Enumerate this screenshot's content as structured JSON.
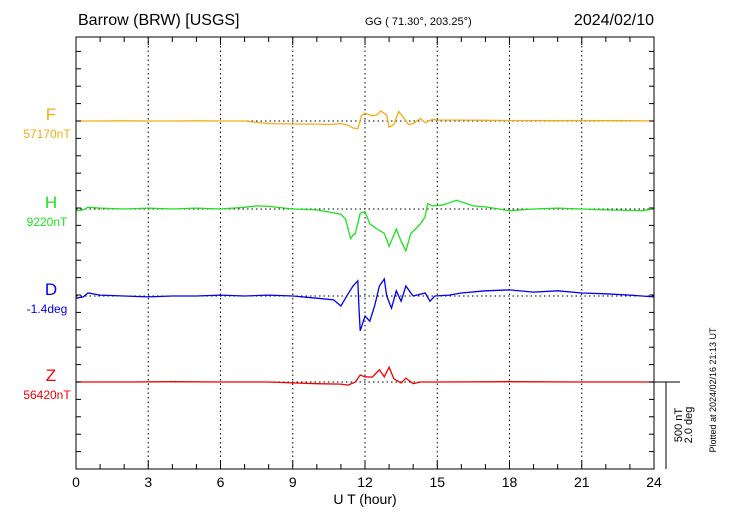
{
  "header": {
    "station": "Barrow (BRW)  [USGS]",
    "coords": "GG ( 71.30°, 203.25°)",
    "date": "2024/02/10"
  },
  "footer": {
    "plotted": "Plotted at 2024/02/16 21:13 UT"
  },
  "chart_data": {
    "type": "line",
    "title": "Barrow (BRW) [USGS] 2024/02/10",
    "xlabel": "U T (hour)",
    "xlim": [
      0,
      24
    ],
    "xticks": [
      "0",
      "3",
      "6",
      "9",
      "12",
      "15",
      "18",
      "21",
      "24"
    ],
    "grid": "vertical dotted every 3 hours; dotted baseline per component",
    "scale": {
      "nT_label": "500 nT",
      "deg_label": "2.0 deg",
      "nT": 500,
      "deg": 2.0
    },
    "series": [
      {
        "name": "F",
        "baseline_label": "57170nT",
        "unit": "nT",
        "color": "#f5ac10",
        "x": [
          0,
          1,
          2,
          3,
          4,
          5,
          6,
          7,
          8,
          9,
          10,
          10.5,
          11,
          11.3,
          11.5,
          11.7,
          11.85,
          12.0,
          12.3,
          12.5,
          12.65,
          12.9,
          13.0,
          13.2,
          13.4,
          13.6,
          13.8,
          14.0,
          14.3,
          14.5,
          14.8,
          15,
          16,
          17,
          18,
          19,
          20,
          21,
          22,
          23,
          24
        ],
        "y": [
          0,
          0,
          1,
          0,
          0,
          1,
          0,
          0,
          -15,
          -17,
          -18,
          -20,
          -15,
          -25,
          -40,
          -45,
          30,
          45,
          30,
          35,
          58,
          35,
          -35,
          -20,
          55,
          20,
          -20,
          -15,
          15,
          -10,
          10,
          5,
          5,
          4,
          3,
          3,
          2,
          3,
          2,
          2,
          0
        ]
      },
      {
        "name": "H",
        "baseline_label": "9220nT",
        "unit": "nT",
        "color": "#1ee01e",
        "x": [
          0,
          0.3,
          0.5,
          1,
          2,
          3,
          4,
          5,
          6,
          7,
          7.5,
          8,
          9,
          10,
          10.5,
          11.0,
          11.2,
          11.4,
          11.5,
          11.6,
          11.8,
          12.0,
          12.2,
          12.5,
          12.8,
          13.0,
          13.3,
          13.5,
          13.7,
          13.9,
          14.1,
          14.3,
          14.5,
          14.6,
          14.8,
          15.2,
          15.8,
          16.5,
          17,
          18,
          19,
          20,
          21,
          22,
          23,
          23.5,
          24
        ],
        "y": [
          -10,
          -5,
          10,
          5,
          0,
          5,
          0,
          5,
          0,
          10,
          18,
          15,
          0,
          -5,
          -17,
          -30,
          -60,
          -170,
          -150,
          -140,
          -25,
          -15,
          -85,
          -115,
          -140,
          -215,
          -115,
          -185,
          -240,
          -140,
          -115,
          -85,
          -45,
          30,
          18,
          22,
          50,
          18,
          12,
          -10,
          0,
          5,
          0,
          -5,
          -8,
          -10,
          0
        ]
      },
      {
        "name": "D",
        "baseline_label": "-1.4deg",
        "unit": "deg",
        "color": "#0000ee",
        "x": [
          0,
          0.3,
          0.5,
          1,
          2,
          3,
          4,
          5,
          6,
          7,
          8,
          9,
          10,
          10.7,
          11.0,
          11.3,
          11.5,
          11.7,
          11.75,
          11.8,
          12.0,
          12.2,
          12.4,
          12.6,
          12.8,
          12.9,
          13.1,
          13.3,
          13.5,
          13.7,
          13.9,
          14.0,
          14.5,
          14.7,
          14.9,
          15.5,
          16,
          17,
          18,
          19,
          20,
          21,
          22,
          23,
          24
        ],
        "y": [
          -0.05,
          -0.02,
          0.07,
          0.02,
          0.0,
          -0.02,
          0.0,
          0.0,
          0.02,
          0.0,
          0.02,
          0.0,
          -0.05,
          -0.09,
          -0.23,
          0.05,
          0.23,
          0.35,
          -0.28,
          -0.8,
          -0.46,
          -0.58,
          -0.23,
          0.23,
          0.39,
          0.0,
          -0.28,
          0.12,
          -0.12,
          0.23,
          0.07,
          0.0,
          0.07,
          -0.12,
          0.0,
          0.02,
          0.07,
          0.12,
          0.14,
          0.09,
          0.12,
          0.07,
          0.05,
          0.02,
          -0.02
        ]
      },
      {
        "name": "Z",
        "baseline_label": "56420nT",
        "unit": "nT",
        "color": "#ee0000",
        "x": [
          0,
          2,
          4,
          6,
          8,
          9,
          10,
          11,
          11.3,
          11.6,
          11.8,
          12.0,
          12.3,
          12.6,
          12.8,
          13.0,
          13.2,
          13.5,
          13.7,
          14.0,
          14.3,
          15,
          18,
          21,
          24
        ],
        "y": [
          0,
          0,
          2,
          0,
          0,
          -5,
          -10,
          -12,
          -18,
          0,
          40,
          30,
          28,
          70,
          30,
          85,
          18,
          -5,
          22,
          -10,
          0,
          0,
          2,
          0,
          0
        ]
      }
    ]
  }
}
